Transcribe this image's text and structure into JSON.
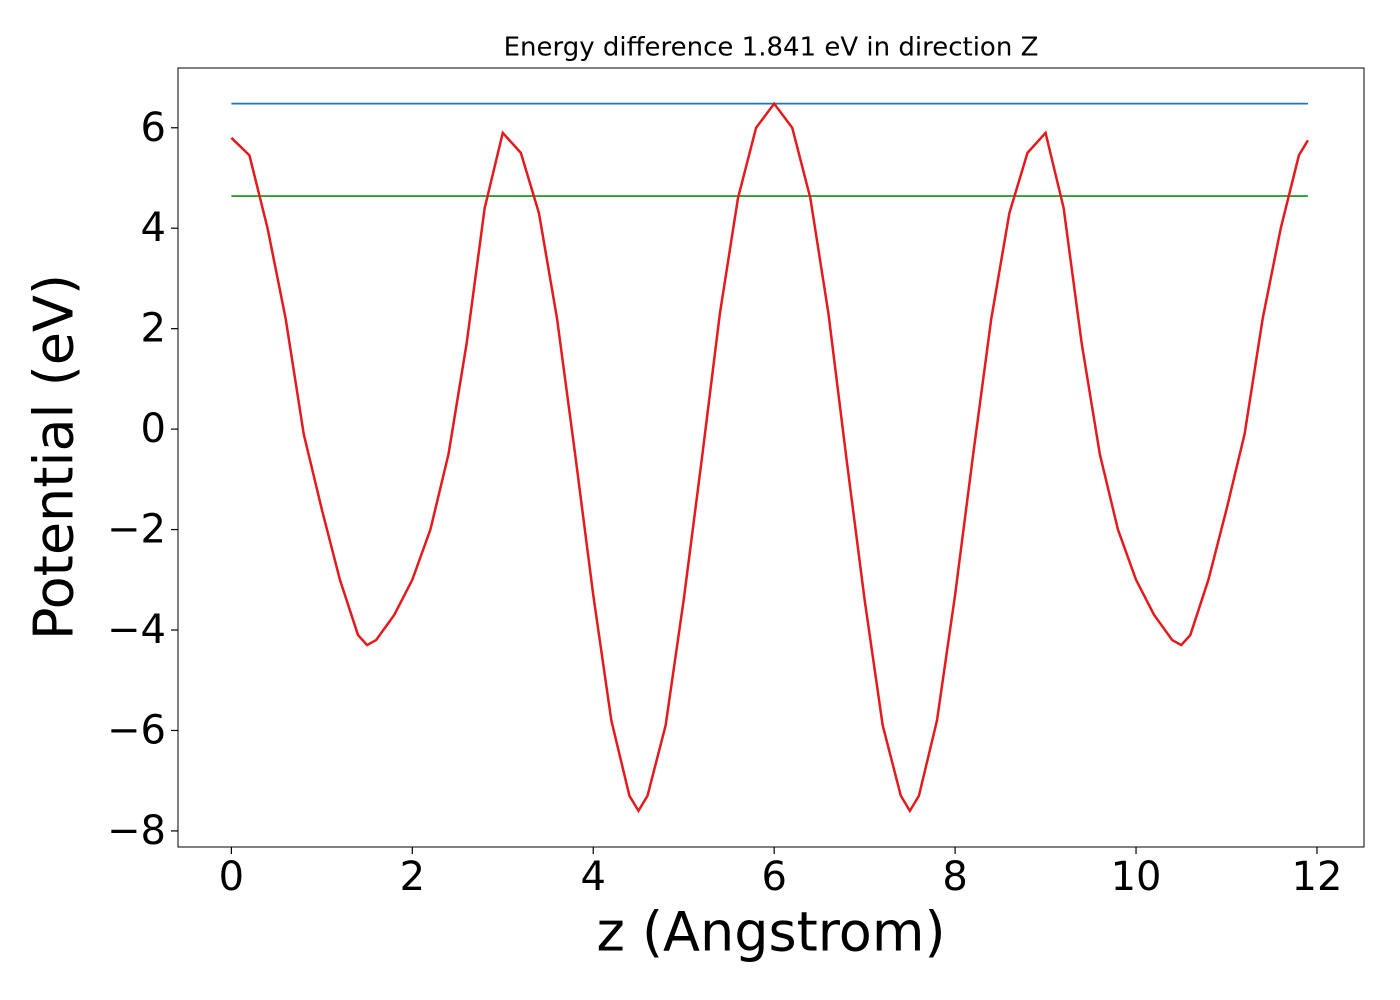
{
  "chart_data": {
    "type": "line",
    "title": "Energy difference 1.841 eV in direction Z",
    "xlabel": "z (Angstrom)",
    "ylabel": "Potential (eV)",
    "xlim": [
      -0.59,
      12.52
    ],
    "ylim": [
      -8.32,
      7.19
    ],
    "xticks": [
      0,
      2,
      4,
      6,
      8,
      10,
      12
    ],
    "yticks": [
      {
        "value": -8,
        "label": "−8"
      },
      {
        "value": -6,
        "label": "−6"
      },
      {
        "value": -4,
        "label": "−4"
      },
      {
        "value": -2,
        "label": "−2"
      },
      0,
      2,
      4,
      6
    ],
    "series": [
      {
        "color": "#1f77b4",
        "x": [
          0,
          11.9
        ],
        "values": [
          6.48,
          6.48
        ]
      },
      {
        "color": "#2ca02c",
        "x": [
          0,
          11.9
        ],
        "values": [
          4.64,
          4.64
        ]
      },
      {
        "color": "#e41a1c",
        "x": [
          0,
          0.2,
          0.4,
          0.6,
          0.8,
          1.0,
          1.2,
          1.4,
          1.5,
          1.6,
          1.8,
          2.0,
          2.2,
          2.4,
          2.6,
          2.8,
          3.0,
          3.2,
          3.4,
          3.6,
          3.8,
          4.0,
          4.2,
          4.4,
          4.5,
          4.6,
          4.8,
          5.0,
          5.2,
          5.4,
          5.6,
          5.8,
          6.0,
          6.2,
          6.4,
          6.6,
          6.8,
          7.0,
          7.2,
          7.4,
          7.5,
          7.6,
          7.8,
          8.0,
          8.2,
          8.4,
          8.6,
          8.8,
          9.0,
          9.2,
          9.4,
          9.6,
          9.8,
          10.0,
          10.2,
          10.4,
          10.5,
          10.6,
          10.8,
          11.0,
          11.2,
          11.4,
          11.6,
          11.8,
          11.9
        ],
        "values": [
          5.8,
          5.45,
          4.0,
          2.2,
          -0.1,
          -1.6,
          -3.0,
          -4.1,
          -4.3,
          -4.2,
          -3.7,
          -3.0,
          -2.0,
          -0.5,
          1.7,
          4.4,
          5.9,
          5.5,
          4.3,
          2.2,
          -0.5,
          -3.3,
          -5.8,
          -7.3,
          -7.6,
          -7.3,
          -5.9,
          -3.4,
          -0.6,
          2.3,
          4.6,
          6.0,
          6.48,
          6.0,
          4.6,
          2.3,
          -0.6,
          -3.4,
          -5.9,
          -7.3,
          -7.6,
          -7.3,
          -5.8,
          -3.3,
          -0.5,
          2.2,
          4.3,
          5.5,
          5.9,
          4.4,
          1.7,
          -0.5,
          -2.0,
          -3.0,
          -3.7,
          -4.2,
          -4.3,
          -4.1,
          -3.0,
          -1.6,
          -0.1,
          2.2,
          4.0,
          5.45,
          5.75
        ]
      }
    ]
  }
}
